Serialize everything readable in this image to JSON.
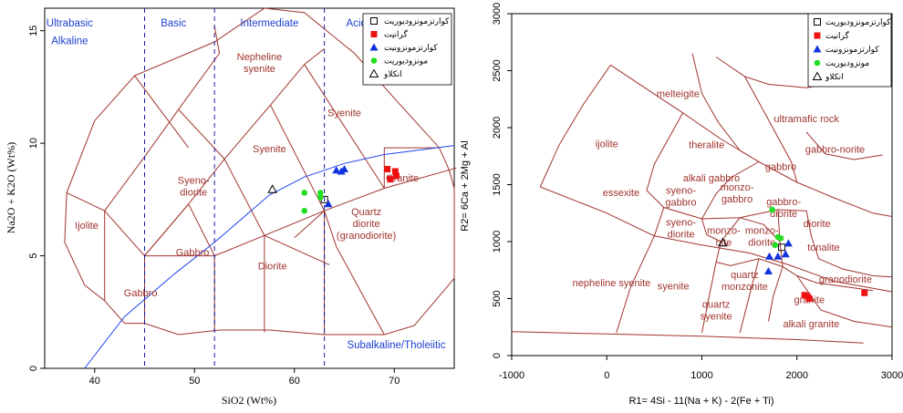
{
  "chart_data": [
    {
      "type": "scatter",
      "title": "",
      "xlabel": "SiO2 (Wt%)",
      "ylabel": "Na2O + K2O (Wt%)",
      "xlim": [
        35,
        76
      ],
      "ylim": [
        0,
        16
      ],
      "xticks": [
        "40",
        "50",
        "60",
        "70"
      ],
      "yticks": [
        "0",
        "5",
        "10",
        "15"
      ],
      "regions": [
        "Ultrabasic",
        "Alkaline",
        "Basic",
        "Intermediate",
        "Acid",
        "Subalkaline/Tholeiitic"
      ],
      "fields": [
        "Nepheline\nsyenite",
        "Syenite",
        "Syenite",
        "Syeno-\ndiorite",
        "Granite",
        "Ijolite",
        "Gabbro",
        "Quartz\ndiorite\n(granodiorite)",
        "Diorite",
        "Gabbro"
      ],
      "legend": [
        "کوارتزمونزودیوریت",
        "گرانیت",
        "کوارتزمونزونیت",
        "مونزودیوریت",
        "انکلاو"
      ],
      "series": [
        {
          "name": "کوارتزمونزودیوریت",
          "x": [
            63.0
          ],
          "y": [
            7.5
          ]
        },
        {
          "name": "گرانیت",
          "x": [
            69.3,
            70.1,
            70.2,
            69.6
          ],
          "y": [
            8.85,
            8.75,
            8.55,
            8.4
          ]
        },
        {
          "name": "کوارتزمونزونیت",
          "x": [
            64.2,
            64.7,
            65.0,
            63.4
          ],
          "y": [
            8.8,
            8.75,
            8.85,
            7.3
          ]
        },
        {
          "name": "مونزودیوریت",
          "x": [
            61.0,
            62.6,
            61.0,
            62.6
          ],
          "y": [
            7.8,
            7.8,
            7.0,
            7.6
          ]
        },
        {
          "name": "انکلاو",
          "x": [
            57.8
          ],
          "y": [
            7.95
          ]
        }
      ]
    },
    {
      "type": "scatter",
      "title": "",
      "xlabel": "R1= 4Si - 11(Na + K) - 2(Fe + Ti)",
      "ylabel": "R2= 6Ca + 2Mg + Al",
      "xlim": [
        -1000,
        3000
      ],
      "ylim": [
        0,
        3000
      ],
      "xticks": [
        "-1000",
        "0",
        "1000",
        "2000",
        "3000"
      ],
      "yticks": [
        "0",
        "500",
        "1000",
        "1500",
        "2000",
        "2500",
        "3000"
      ],
      "fields": [
        "melteigite",
        "ultramafic rock",
        "ijolite",
        "theralite",
        "alkali gabbro",
        "gabbro-norite",
        "gabbro",
        "essexite",
        "syeno-\ngabbro",
        "monzo-\ngabbro",
        "gabbro-\ndiorite",
        "diorite",
        "syeno-\ndiorite",
        "monzo-\nnite",
        "monzo-\ndiorite",
        "tonalite",
        "granodiorite",
        "nepheline syenite",
        "syenite",
        "quartz\nmonzonite",
        "quartz\nsyenite",
        "granite",
        "alkali granite"
      ],
      "legend": [
        "کوارتزمونزودیوریت",
        "گرانیت",
        "کوارتزمونزونیت",
        "مونزودیوریت",
        "انکلاو"
      ],
      "series": [
        {
          "name": "کوارتزمونزودیوریت",
          "x": [
            1840
          ],
          "y": [
            950
          ]
        },
        {
          "name": "گرانیت",
          "x": [
            2080,
            2110,
            2130,
            2710
          ],
          "y": [
            530,
            520,
            500,
            550
          ]
        },
        {
          "name": "کوارتزمونزونیت",
          "x": [
            1710,
            1800,
            1880,
            1910,
            1700
          ],
          "y": [
            870,
            870,
            890,
            985,
            740
          ]
        },
        {
          "name": "مونزودیوریت",
          "x": [
            1800,
            1740,
            1830,
            1770
          ],
          "y": [
            1040,
            1280,
            1030,
            970
          ]
        },
        {
          "name": "انکلاو",
          "x": [
            1220
          ],
          "y": [
            990
          ]
        }
      ]
    }
  ]
}
